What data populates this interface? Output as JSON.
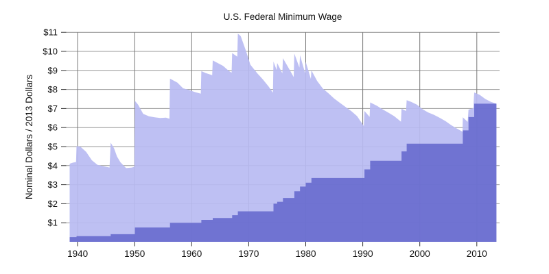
{
  "chart_data": {
    "type": "area",
    "title": "U.S. Federal Minimum Wage",
    "ylabel": "Nominal Dollars  /  2013 Dollars",
    "xlabel": "",
    "xlim": [
      1938,
      2014
    ],
    "ylim": [
      0,
      11
    ],
    "x_ticks": [
      1940,
      1950,
      1960,
      1970,
      1980,
      1990,
      2000,
      2010
    ],
    "y_ticks": [
      1,
      2,
      3,
      4,
      5,
      6,
      7,
      8,
      9,
      10,
      11
    ],
    "y_tick_prefix": "$",
    "grid": true,
    "legend_position": "none",
    "colors": {
      "adjusted_area": "#c1c2f2",
      "nominal_area": "#7276d0",
      "h_gridline": "#9a9a9a",
      "v_gridline": "#777777",
      "tick": "#333333",
      "text": "#0f0f0f"
    },
    "series": [
      {
        "name": "2013 Dollars",
        "kind": "area-line",
        "color": "#c1c2f2",
        "end_x": 2013.45,
        "points": [
          [
            1938.6,
            4.1
          ],
          [
            1939.2,
            4.16
          ],
          [
            1939.72,
            4.19
          ],
          [
            1939.8,
            5.03
          ],
          [
            1940.5,
            4.99
          ],
          [
            1941.5,
            4.72
          ],
          [
            1942.5,
            4.28
          ],
          [
            1943.5,
            4.04
          ],
          [
            1944.5,
            3.97
          ],
          [
            1945.6,
            3.9
          ],
          [
            1945.8,
            5.21
          ],
          [
            1946.4,
            4.9
          ],
          [
            1946.9,
            4.48
          ],
          [
            1947.5,
            4.18
          ],
          [
            1948.5,
            3.87
          ],
          [
            1949.5,
            3.9
          ],
          [
            1949.95,
            3.94
          ],
          [
            1950.05,
            7.4
          ],
          [
            1950.6,
            7.2
          ],
          [
            1951.5,
            6.72
          ],
          [
            1952.5,
            6.59
          ],
          [
            1953.5,
            6.54
          ],
          [
            1954.5,
            6.5
          ],
          [
            1955.5,
            6.52
          ],
          [
            1956.1,
            6.46
          ],
          [
            1956.2,
            8.57
          ],
          [
            1957.5,
            8.36
          ],
          [
            1958.5,
            8.06
          ],
          [
            1959.5,
            7.98
          ],
          [
            1960.5,
            7.87
          ],
          [
            1961.6,
            7.78
          ],
          [
            1961.7,
            8.96
          ],
          [
            1962.5,
            8.86
          ],
          [
            1963.6,
            8.75
          ],
          [
            1963.7,
            9.52
          ],
          [
            1964.5,
            9.4
          ],
          [
            1965.5,
            9.24
          ],
          [
            1966.5,
            8.98
          ],
          [
            1967.0,
            8.88
          ],
          [
            1967.1,
            9.91
          ],
          [
            1968.0,
            9.72
          ],
          [
            1968.1,
            10.93
          ],
          [
            1968.6,
            10.8
          ],
          [
            1969.5,
            10.05
          ],
          [
            1970.3,
            9.3
          ],
          [
            1971.5,
            8.85
          ],
          [
            1972.5,
            8.52
          ],
          [
            1973.5,
            8.15
          ],
          [
            1974.25,
            7.83
          ],
          [
            1974.35,
            9.47
          ],
          [
            1974.9,
            9.02
          ],
          [
            1975.0,
            9.39
          ],
          [
            1975.9,
            8.85
          ],
          [
            1976.0,
            9.64
          ],
          [
            1976.9,
            9.18
          ],
          [
            1977.9,
            8.65
          ],
          [
            1978.0,
            9.88
          ],
          [
            1978.9,
            9.15
          ],
          [
            1979.0,
            9.8
          ],
          [
            1979.9,
            8.85
          ],
          [
            1980.0,
            9.45
          ],
          [
            1980.9,
            8.55
          ],
          [
            1981.0,
            9.0
          ],
          [
            1982.0,
            8.45
          ],
          [
            1983.0,
            8.05
          ],
          [
            1984.0,
            7.8
          ],
          [
            1985.0,
            7.52
          ],
          [
            1986.0,
            7.3
          ],
          [
            1987.0,
            7.08
          ],
          [
            1988.0,
            6.86
          ],
          [
            1989.0,
            6.6
          ],
          [
            1990.2,
            6.08
          ],
          [
            1990.3,
            6.87
          ],
          [
            1991.2,
            6.56
          ],
          [
            1991.3,
            7.32
          ],
          [
            1992.5,
            7.14
          ],
          [
            1993.5,
            6.95
          ],
          [
            1994.5,
            6.78
          ],
          [
            1995.5,
            6.6
          ],
          [
            1996.7,
            6.31
          ],
          [
            1996.8,
            6.99
          ],
          [
            1997.6,
            6.87
          ],
          [
            1997.7,
            7.44
          ],
          [
            1998.5,
            7.35
          ],
          [
            1999.5,
            7.2
          ],
          [
            2000.5,
            6.96
          ],
          [
            2001.5,
            6.79
          ],
          [
            2002.5,
            6.67
          ],
          [
            2003.5,
            6.51
          ],
          [
            2004.5,
            6.34
          ],
          [
            2005.5,
            6.13
          ],
          [
            2006.5,
            5.95
          ],
          [
            2007.5,
            5.78
          ],
          [
            2007.55,
            6.54
          ],
          [
            2008.4,
            6.3
          ],
          [
            2008.55,
            6.94
          ],
          [
            2009.4,
            7.02
          ],
          [
            2009.55,
            7.84
          ],
          [
            2010.5,
            7.72
          ],
          [
            2011.5,
            7.5
          ],
          [
            2012.5,
            7.35
          ],
          [
            2013.45,
            7.25
          ]
        ]
      },
      {
        "name": "Nominal Dollars",
        "kind": "area-step",
        "color": "#7276d0",
        "end_x": 2013.45,
        "points": [
          [
            1938.6,
            0.25
          ],
          [
            1939.8,
            0.3
          ],
          [
            1945.8,
            0.4
          ],
          [
            1950.05,
            0.75
          ],
          [
            1956.2,
            1.0
          ],
          [
            1961.7,
            1.15
          ],
          [
            1963.7,
            1.25
          ],
          [
            1967.1,
            1.4
          ],
          [
            1968.1,
            1.6
          ],
          [
            1974.35,
            2.0
          ],
          [
            1975.0,
            2.1
          ],
          [
            1976.0,
            2.3
          ],
          [
            1978.0,
            2.65
          ],
          [
            1979.0,
            2.9
          ],
          [
            1980.0,
            3.1
          ],
          [
            1981.0,
            3.35
          ],
          [
            1990.3,
            3.8
          ],
          [
            1991.3,
            4.25
          ],
          [
            1996.8,
            4.75
          ],
          [
            1997.7,
            5.15
          ],
          [
            2007.55,
            5.85
          ],
          [
            2008.55,
            6.55
          ],
          [
            2009.55,
            7.25
          ]
        ]
      }
    ]
  }
}
